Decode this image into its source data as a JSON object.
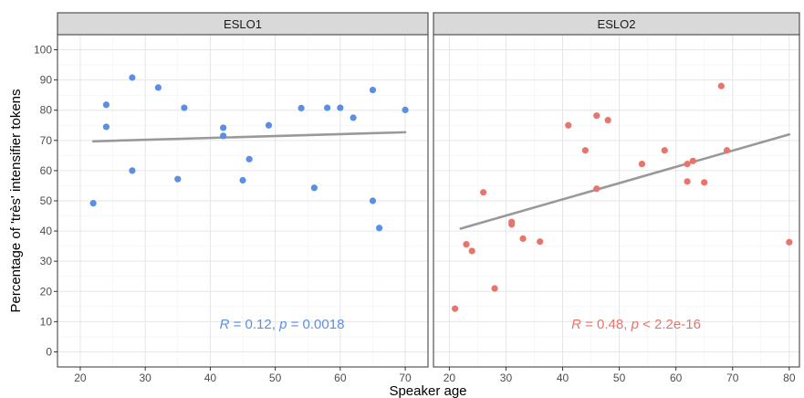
{
  "chart_data": {
    "type": "scatter",
    "xlabel": "Speaker age",
    "ylabel": "Percentage of 'très' intensifier tokens",
    "ylim": [
      0,
      100
    ],
    "yticks": [
      0,
      10,
      20,
      30,
      40,
      50,
      60,
      70,
      80,
      90,
      100
    ],
    "grid": true,
    "panels": [
      {
        "title": "ESLO1",
        "color": "#5b8fe6",
        "xlim": [
          16.5,
          73.5
        ],
        "xticks": [
          20,
          30,
          40,
          50,
          60,
          70
        ],
        "points": [
          [
            22,
            49.2
          ],
          [
            24,
            81.8
          ],
          [
            24,
            74.5
          ],
          [
            28,
            90.8
          ],
          [
            28,
            60.0
          ],
          [
            32,
            87.5
          ],
          [
            35,
            57.2
          ],
          [
            36,
            80.8
          ],
          [
            42,
            74.2
          ],
          [
            42,
            71.5
          ],
          [
            45,
            56.8
          ],
          [
            46,
            63.8
          ],
          [
            49,
            75.0
          ],
          [
            54,
            80.7
          ],
          [
            56,
            54.3
          ],
          [
            58,
            80.8
          ],
          [
            60,
            80.8
          ],
          [
            62,
            77.5
          ],
          [
            65,
            86.7
          ],
          [
            65,
            50.0
          ],
          [
            66,
            41.0
          ],
          [
            70,
            80.1
          ]
        ],
        "regression_line": [
          [
            22,
            69.7
          ],
          [
            70,
            72.7
          ]
        ],
        "annotation": {
          "R": "0.12",
          "p": "0.0018"
        }
      },
      {
        "title": "ESLO2",
        "color": "#e8746c",
        "xlim": [
          17.2,
          81.8
        ],
        "xticks": [
          20,
          30,
          40,
          50,
          60,
          70,
          80
        ],
        "points": [
          [
            21,
            14.3
          ],
          [
            23,
            35.6
          ],
          [
            24,
            33.4
          ],
          [
            26,
            52.8
          ],
          [
            28,
            21.0
          ],
          [
            31,
            43.0
          ],
          [
            31,
            42.2
          ],
          [
            33,
            37.5
          ],
          [
            36,
            36.5
          ],
          [
            41,
            75.0
          ],
          [
            44,
            66.7
          ],
          [
            46,
            78.2
          ],
          [
            46,
            54.0
          ],
          [
            48,
            76.7
          ],
          [
            54,
            62.2
          ],
          [
            58,
            66.7
          ],
          [
            62,
            62.2
          ],
          [
            62,
            56.4
          ],
          [
            63,
            63.2
          ],
          [
            65,
            56.1
          ],
          [
            68,
            88.0
          ],
          [
            69,
            66.7
          ],
          [
            80,
            36.3
          ]
        ],
        "regression_line": [
          [
            22,
            40.8
          ],
          [
            80,
            72.0
          ]
        ],
        "annotation": {
          "R": "0.48",
          "p": "2.2e-16"
        }
      }
    ]
  }
}
